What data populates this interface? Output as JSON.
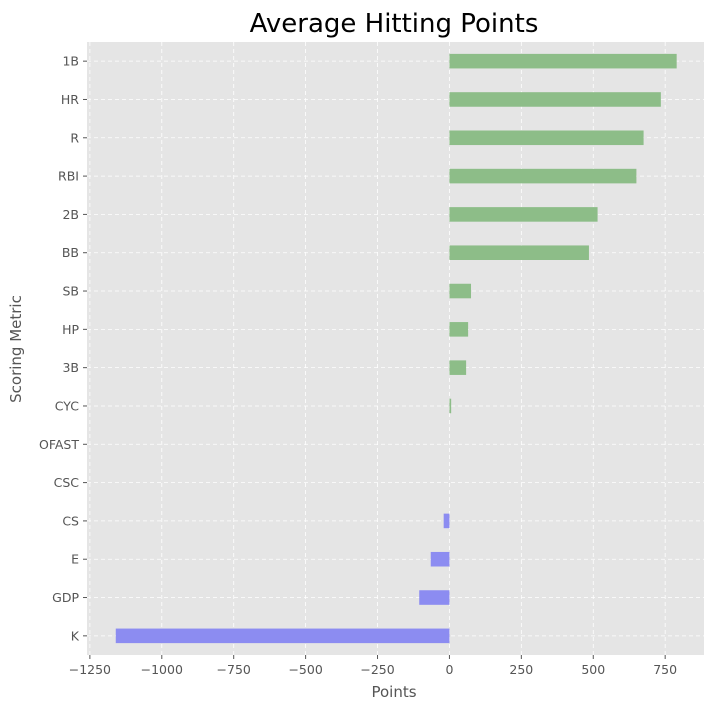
{
  "chart_data": {
    "type": "bar",
    "orientation": "horizontal",
    "title": "Average Hitting Points",
    "xlabel": "Points",
    "ylabel": "Scoring Metric",
    "xlim": [
      -1260,
      885
    ],
    "xticks": [
      -1250,
      -1000,
      -750,
      -500,
      -250,
      0,
      250,
      500,
      750
    ],
    "xtick_labels": [
      "−1250",
      "−1000",
      "−750",
      "−500",
      "−250",
      "0",
      "250",
      "500",
      "750"
    ],
    "grid": true,
    "categories": [
      "1B",
      "HR",
      "R",
      "RBI",
      "2B",
      "BB",
      "SB",
      "HP",
      "3B",
      "CYC",
      "OFAST",
      "CSC",
      "CS",
      "E",
      "GDP",
      "K"
    ],
    "values": [
      790,
      735,
      675,
      650,
      515,
      485,
      75,
      65,
      58,
      6,
      0,
      0,
      -20,
      -65,
      -105,
      -1160
    ],
    "colors": {
      "positive": "#8dbd88",
      "negative": "#8c8cf1",
      "background": "#e5e5e5",
      "grid": "#ffffff"
    }
  }
}
